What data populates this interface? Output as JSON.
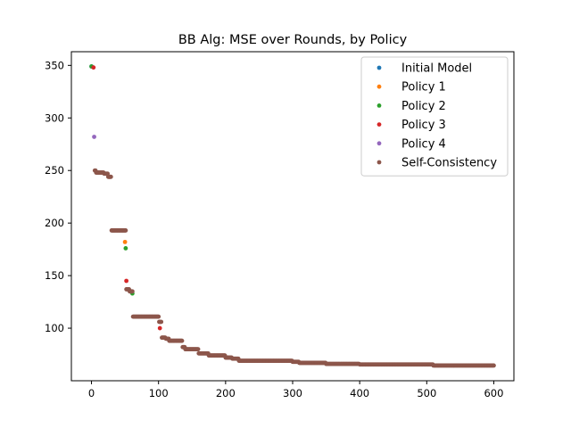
{
  "chart_data": {
    "type": "scatter",
    "title": "BB Alg: MSE over Rounds, by Policy",
    "xlabel": "",
    "ylabel": "",
    "xlim": [
      -30,
      630
    ],
    "ylim": [
      50,
      363
    ],
    "xticks": [
      0,
      100,
      200,
      300,
      400,
      500,
      600
    ],
    "yticks": [
      100,
      150,
      200,
      250,
      300,
      350
    ],
    "grid": false,
    "legend_position": "top-right",
    "series": [
      {
        "name": "Initial Model",
        "color": "#1f77b4",
        "points": [
          [
            0,
            349
          ]
        ]
      },
      {
        "name": "Policy 1",
        "color": "#ff7f0e",
        "points": [
          [
            50,
            182
          ]
        ]
      },
      {
        "name": "Policy 2",
        "color": "#2ca02c",
        "points": [
          [
            0,
            349
          ],
          [
            51,
            176
          ],
          [
            61,
            133
          ]
        ]
      },
      {
        "name": "Policy 3",
        "color": "#d62728",
        "points": [
          [
            3,
            348
          ],
          [
            27,
            244
          ],
          [
            52,
            145
          ],
          [
            102,
            100
          ]
        ]
      },
      {
        "name": "Policy 4",
        "color": "#9467bd",
        "points": [
          [
            4,
            282
          ]
        ]
      },
      {
        "name": "Self-Consistency",
        "color": "#8c564b",
        "segments": [
          [
            5,
            6,
            250
          ],
          [
            7,
            18,
            248
          ],
          [
            19,
            24,
            247
          ],
          [
            25,
            29,
            244
          ],
          [
            30,
            51,
            193
          ],
          [
            52,
            56,
            137
          ],
          [
            57,
            61,
            135
          ],
          [
            62,
            100,
            111
          ],
          [
            101,
            104,
            106
          ],
          [
            105,
            110,
            91
          ],
          [
            111,
            115,
            90
          ],
          [
            116,
            135,
            88
          ],
          [
            136,
            139,
            82
          ],
          [
            140,
            159,
            80
          ],
          [
            160,
            174,
            76
          ],
          [
            175,
            199,
            74
          ],
          [
            200,
            209,
            72
          ],
          [
            210,
            219,
            71
          ],
          [
            220,
            299,
            69
          ],
          [
            300,
            309,
            68
          ],
          [
            310,
            349,
            67
          ],
          [
            350,
            399,
            66
          ],
          [
            400,
            509,
            65.5
          ],
          [
            510,
            600,
            64.5
          ]
        ]
      }
    ]
  }
}
